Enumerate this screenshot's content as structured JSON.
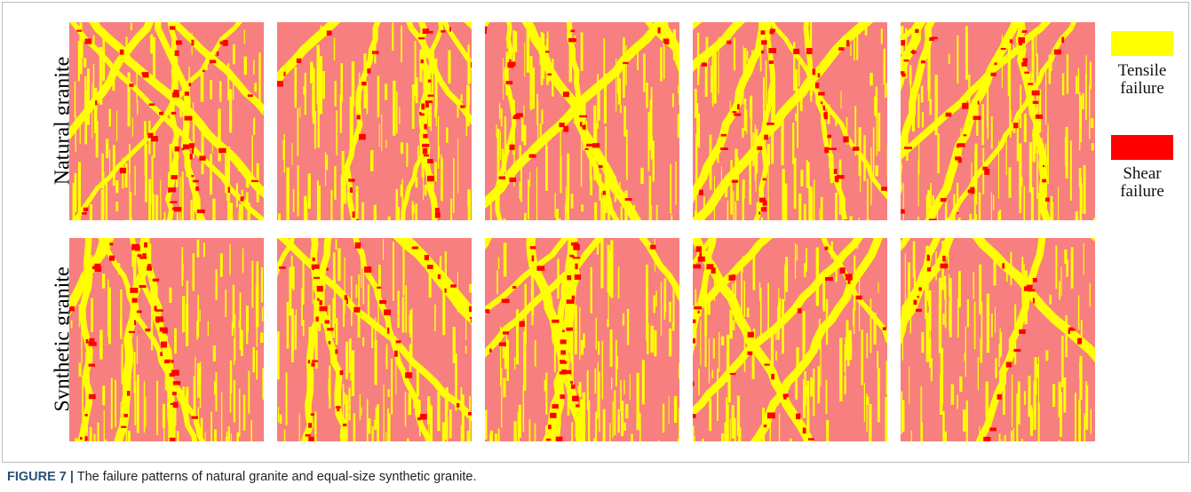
{
  "figure": {
    "row_labels": [
      "Natural granite",
      "Synthetic granite"
    ],
    "legend": [
      {
        "label": "Tensile failure",
        "color": "#ffff00"
      },
      {
        "label": "Shear failure",
        "color": "#ff0000"
      }
    ],
    "background_color": "#f77f7f"
  },
  "caption": {
    "label": "FIGURE 7 |",
    "text": "The failure patterns of natural granite and equal-size synthetic granite."
  }
}
